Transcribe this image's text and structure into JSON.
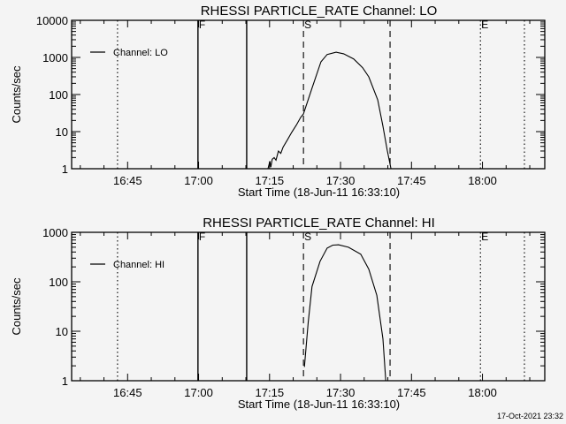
{
  "footer_timestamp": "17-Oct-2021 23:32",
  "chart_data": [
    {
      "type": "line",
      "title": "RHESSI PARTICLE_RATE Channel: LO",
      "xlabel": "Start Time (18-Jun-11 16:33:10)",
      "ylabel": "Counts/sec",
      "yscale": "log",
      "ylim": [
        1,
        10000
      ],
      "xlim_minutes_from_start": [
        0,
        100
      ],
      "x_tick_labels": [
        "16:45",
        "17:00",
        "17:15",
        "17:30",
        "17:45",
        "18:00"
      ],
      "x_tick_minutes": [
        11.83,
        26.83,
        41.83,
        56.83,
        71.83,
        86.83
      ],
      "y_tick_labels": [
        "1",
        "10",
        "100",
        "1000",
        "10000"
      ],
      "y_tick_values": [
        1,
        10,
        100,
        1000,
        10000
      ],
      "legend": {
        "label": "Channel: LO",
        "position": "top-left"
      },
      "markers": [
        {
          "minute": 9.7,
          "style": "dotted",
          "label": ""
        },
        {
          "minute": 26.7,
          "style": "solid",
          "label": "F"
        },
        {
          "minute": 37.0,
          "style": "solid",
          "label": ""
        },
        {
          "minute": 49.0,
          "style": "dashed",
          "label": "S"
        },
        {
          "minute": 67.3,
          "style": "dashed",
          "label": ""
        },
        {
          "minute": 86.4,
          "style": "dotted",
          "label": "E"
        },
        {
          "minute": 95.7,
          "style": "dotted",
          "label": ""
        }
      ],
      "series": [
        {
          "name": "Channel: LO",
          "x": [
            41.5,
            41.9,
            42.1,
            42.4,
            42.8,
            43.2,
            43.7,
            44.2,
            44.7,
            45.6,
            46.5,
            47.5,
            48.4,
            49.0,
            50.8,
            52.7,
            54.0,
            55.9,
            57.5,
            59.6,
            61.5,
            62.8,
            64.7,
            65.8,
            66.7,
            67.5
          ],
          "y": [
            1,
            1.6,
            1.1,
            1.8,
            2,
            1.7,
            3,
            2.6,
            3.8,
            6,
            9.5,
            15,
            24,
            30,
            148,
            760,
            1200,
            1380,
            1250,
            910,
            530,
            300,
            72,
            14,
            3.2,
            1
          ]
        }
      ]
    },
    {
      "type": "line",
      "title": "RHESSI PARTICLE_RATE Channel: HI",
      "xlabel": "Start Time (18-Jun-11 16:33:10)",
      "ylabel": "Counts/sec",
      "yscale": "log",
      "ylim": [
        1,
        1000
      ],
      "xlim_minutes_from_start": [
        0,
        100
      ],
      "x_tick_labels": [
        "16:45",
        "17:00",
        "17:15",
        "17:30",
        "17:45",
        "18:00"
      ],
      "x_tick_minutes": [
        11.83,
        26.83,
        41.83,
        56.83,
        71.83,
        86.83
      ],
      "y_tick_labels": [
        "1",
        "10",
        "100",
        "1000"
      ],
      "y_tick_values": [
        1,
        10,
        100,
        1000
      ],
      "legend": {
        "label": "Channel: HI",
        "position": "top-left"
      },
      "markers": [
        {
          "minute": 9.7,
          "style": "dotted",
          "label": ""
        },
        {
          "minute": 26.7,
          "style": "solid",
          "label": "F"
        },
        {
          "minute": 37.0,
          "style": "solid",
          "label": ""
        },
        {
          "minute": 49.0,
          "style": "dashed",
          "label": "S"
        },
        {
          "minute": 67.3,
          "style": "dashed",
          "label": ""
        },
        {
          "minute": 86.4,
          "style": "dotted",
          "label": "E"
        },
        {
          "minute": 95.7,
          "style": "dotted",
          "label": ""
        }
      ],
      "series": [
        {
          "name": "Channel: HI",
          "x": [
            49.2,
            50.0,
            50.8,
            52.5,
            54.0,
            55.2,
            56.4,
            58.5,
            61.1,
            62.8,
            64.5,
            65.8,
            66.4
          ],
          "y": [
            1.9,
            15,
            80,
            260,
            480,
            550,
            560,
            500,
            360,
            180,
            53,
            7,
            1
          ]
        }
      ]
    }
  ]
}
